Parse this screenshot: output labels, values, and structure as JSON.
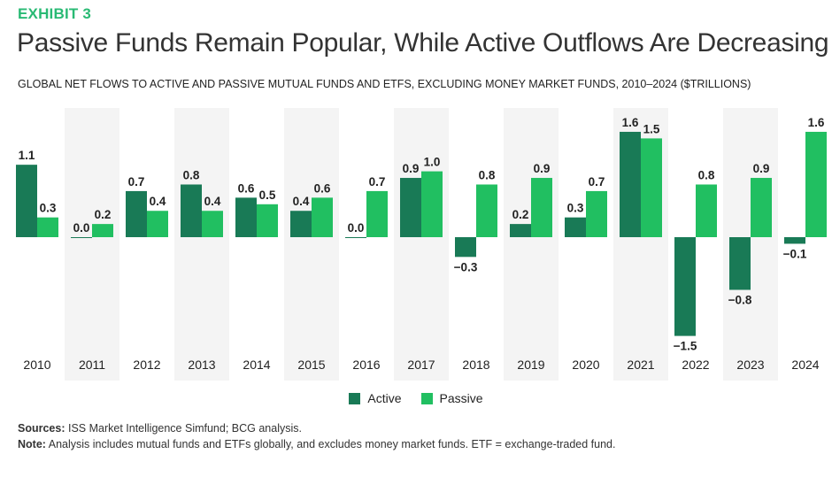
{
  "header": {
    "exhibit": "EXHIBIT 3",
    "title": "Passive Funds Remain Popular, While Active Outflows Are Decreasing",
    "subtitle": "GLOBAL NET FLOWS TO ACTIVE AND PASSIVE MUTUAL FUNDS AND ETFS, EXCLUDING MONEY MARKET FUNDS, 2010–2024 ($TRILLIONS)"
  },
  "chart_data": {
    "type": "bar",
    "title": "",
    "xlabel": "",
    "ylabel": "",
    "ylim": [
      -1.6,
      1.8
    ],
    "grid": false,
    "legend_placement": "bottom",
    "categories": [
      "2010",
      "2011",
      "2012",
      "2013",
      "2014",
      "2015",
      "2016",
      "2017",
      "2018",
      "2019",
      "2020",
      "2021",
      "2022",
      "2023",
      "2024"
    ],
    "series": [
      {
        "name": "Active",
        "color": "#197a56",
        "values": [
          1.1,
          0.0,
          0.7,
          0.8,
          0.6,
          0.4,
          0.0,
          0.9,
          -0.3,
          0.2,
          0.3,
          1.6,
          -1.5,
          -0.8,
          -0.1
        ]
      },
      {
        "name": "Passive",
        "color": "#21bf61",
        "values": [
          0.3,
          0.2,
          0.4,
          0.4,
          0.5,
          0.6,
          0.7,
          1.0,
          0.8,
          0.9,
          0.7,
          1.5,
          0.8,
          0.9,
          1.6
        ]
      }
    ],
    "band_color": "#f4f4f4"
  },
  "footer": {
    "sources_label": "Sources:",
    "sources_text": " ISS Market Intelligence Simfund; BCG analysis.",
    "note_label": "Note:",
    "note_text": " Analysis includes mutual funds and ETFs globally, and excludes money market funds. ETF = exchange-traded fund."
  }
}
